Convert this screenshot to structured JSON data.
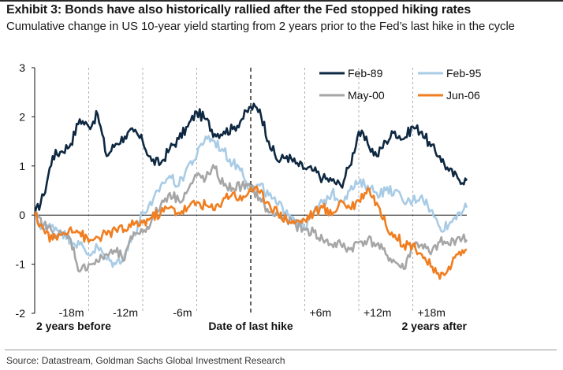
{
  "title": "Exhibit 3: Bonds have also historically rallied after the Fed stopped hiking rates",
  "subtitle": "Cumulative change in US 10-year yield starting from 2 years prior to the Fed’s last hike in the cycle",
  "source": "Source: Datastream, Goldman Sachs Global Investment Research",
  "chart_data": {
    "type": "line",
    "title": "Exhibit 3: Bonds have also historically rallied after the Fed stopped hiking rates",
    "subtitle": "Cumulative change in US 10-year yield starting from 2 years prior to the Fed’s last hike in the cycle",
    "xlabel": "",
    "ylabel": "",
    "x_unit": "months relative to last hike",
    "xlim": [
      -24,
      24
    ],
    "ylim": [
      -2,
      3
    ],
    "yticks": [
      -2,
      -1,
      0,
      1,
      2,
      3
    ],
    "x_markers": [
      {
        "x": -18,
        "label": "-18m"
      },
      {
        "x": -12,
        "label": "-12m"
      },
      {
        "x": -6,
        "label": "-6m"
      },
      {
        "x": 6,
        "label": "+6m"
      },
      {
        "x": 12,
        "label": "+12m"
      },
      {
        "x": 18,
        "label": "+18m"
      }
    ],
    "bottom_labels": [
      {
        "x": -24,
        "label": "2 years before"
      },
      {
        "x": 0,
        "label": "Date of last hike"
      },
      {
        "x": 24,
        "label": "2 years after"
      }
    ],
    "hike_line_x": 0,
    "grid": false,
    "legend_position": "top-right",
    "x": [
      -24,
      -23,
      -22,
      -21,
      -20,
      -19,
      -18,
      -17,
      -16,
      -15,
      -14,
      -13,
      -12,
      -11,
      -10,
      -9,
      -8,
      -7,
      -6,
      -5,
      -4,
      -3,
      -2,
      -1,
      0,
      1,
      2,
      3,
      4,
      5,
      6,
      7,
      8,
      9,
      10,
      11,
      12,
      13,
      14,
      15,
      16,
      17,
      18,
      19,
      20,
      21,
      22,
      23,
      24
    ],
    "series": [
      {
        "name": "Feb-89",
        "color": "#0e2841",
        "values": [
          0,
          0.4,
          1.2,
          1.3,
          1.45,
          1.95,
          1.8,
          2.05,
          1.2,
          1.45,
          1.6,
          1.7,
          1.5,
          1.1,
          1.05,
          1.35,
          1.55,
          1.8,
          2.1,
          1.95,
          1.65,
          1.7,
          1.75,
          1.95,
          2.2,
          2.15,
          1.5,
          1.1,
          1.2,
          1.05,
          0.95,
          0.9,
          0.75,
          0.7,
          0.6,
          1.0,
          1.7,
          1.45,
          1.2,
          1.5,
          1.7,
          1.55,
          1.8,
          1.7,
          1.4,
          1.2,
          0.9,
          0.75,
          0.7
        ]
      },
      {
        "name": "Feb-95",
        "color": "#a9cce6",
        "values": [
          0,
          -0.3,
          -0.2,
          -0.35,
          -0.5,
          -0.6,
          -0.8,
          -0.65,
          -0.9,
          -1.0,
          -0.8,
          -0.4,
          0.05,
          0.2,
          0.6,
          0.8,
          0.6,
          1.0,
          1.2,
          1.6,
          1.5,
          1.3,
          1.05,
          0.95,
          0.5,
          0.6,
          0.4,
          0.2,
          0.1,
          -0.1,
          -0.25,
          0.05,
          0.25,
          0.45,
          0.3,
          0.5,
          0.65,
          0.6,
          0.45,
          0.5,
          0.5,
          0.25,
          0.3,
          0.4,
          0.1,
          -0.25,
          -0.2,
          0.05,
          0.15
        ]
      },
      {
        "name": "May-00",
        "color": "#a6a6a6",
        "values": [
          0,
          -0.2,
          -0.35,
          -0.4,
          -0.5,
          -1.15,
          -1.0,
          -0.95,
          -0.8,
          -0.75,
          -0.9,
          -0.35,
          -0.35,
          -0.1,
          0.2,
          0.45,
          0.3,
          0.5,
          0.8,
          0.75,
          0.95,
          0.6,
          0.55,
          0.6,
          0.55,
          0.35,
          0.05,
          0.0,
          -0.1,
          -0.2,
          -0.3,
          -0.35,
          -0.5,
          -0.6,
          -0.6,
          -0.7,
          -0.55,
          -0.5,
          -0.6,
          -0.8,
          -0.95,
          -1.1,
          -0.6,
          -0.6,
          -0.8,
          -0.55,
          -0.6,
          -0.45,
          -0.5
        ]
      },
      {
        "name": "Jun-06",
        "color": "#f07e20",
        "values": [
          0,
          -0.3,
          -0.5,
          -0.4,
          -0.25,
          -0.35,
          -0.55,
          -0.45,
          -0.4,
          -0.3,
          -0.3,
          -0.2,
          -0.15,
          -0.05,
          0.05,
          0.15,
          0.05,
          0.15,
          0.25,
          0.2,
          0.1,
          0.35,
          0.45,
          0.3,
          0.55,
          0.45,
          0.25,
          0.05,
          -0.1,
          -0.15,
          -0.1,
          0.05,
          0.15,
          0.0,
          0.3,
          0.15,
          0.3,
          0.55,
          0.25,
          -0.2,
          -0.4,
          -0.6,
          -0.6,
          -0.8,
          -1.05,
          -1.3,
          -1.05,
          -0.8,
          -0.7
        ]
      }
    ]
  }
}
